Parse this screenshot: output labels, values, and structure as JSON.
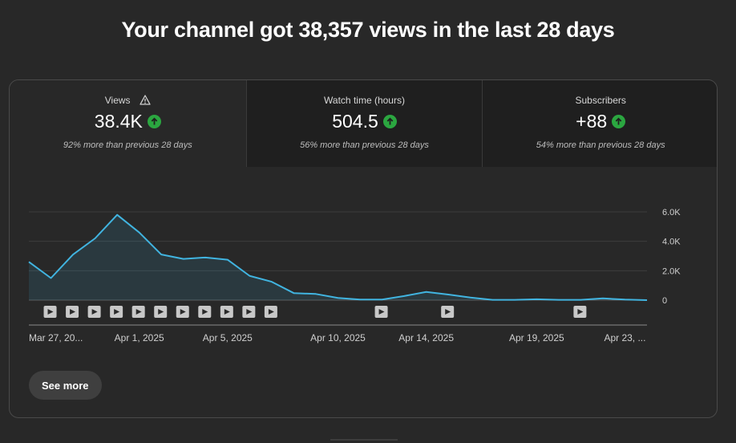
{
  "headline": "Your channel got 38,357 views in the last 28 days",
  "tabs": [
    {
      "label": "Views",
      "value": "38.4K",
      "comparison": "92% more than previous 28 days",
      "has_warning": true,
      "active": true
    },
    {
      "label": "Watch time (hours)",
      "value": "504.5",
      "comparison": "56% more than previous 28 days",
      "active": false
    },
    {
      "label": "Subscribers",
      "value": "+88",
      "comparison": "54% more than previous 28 days",
      "active": false
    }
  ],
  "chart_data": {
    "type": "area",
    "x": [
      "Mar 27",
      "Mar 28",
      "Mar 29",
      "Mar 30",
      "Mar 31",
      "Apr 1",
      "Apr 2",
      "Apr 3",
      "Apr 4",
      "Apr 5",
      "Apr 6",
      "Apr 7",
      "Apr 8",
      "Apr 9",
      "Apr 10",
      "Apr 11",
      "Apr 12",
      "Apr 13",
      "Apr 14",
      "Apr 15",
      "Apr 16",
      "Apr 17",
      "Apr 18",
      "Apr 19",
      "Apr 20",
      "Apr 21",
      "Apr 22",
      "Apr 23",
      "Apr 24"
    ],
    "values": [
      2600,
      1500,
      3100,
      4200,
      5800,
      4600,
      3100,
      2800,
      2900,
      2750,
      1650,
      1250,
      480,
      420,
      150,
      40,
      40,
      280,
      560,
      380,
      180,
      20,
      20,
      60,
      20,
      20,
      120,
      40,
      0
    ],
    "ylim": [
      0,
      6000
    ],
    "y_ticks": [
      "6.0K",
      "4.0K",
      "2.0K",
      "0"
    ],
    "y_tick_values": [
      6000,
      4000,
      2000,
      0
    ],
    "x_tick_labels": [
      {
        "label": "Mar 27, 20...",
        "index": 0
      },
      {
        "label": "Apr 1, 2025",
        "index": 5
      },
      {
        "label": "Apr 5, 2025",
        "index": 9
      },
      {
        "label": "Apr 10, 2025",
        "index": 14
      },
      {
        "label": "Apr 14, 2025",
        "index": 18
      },
      {
        "label": "Apr 19, 2025",
        "index": 23
      },
      {
        "label": "Apr 23, ...",
        "index": 27
      }
    ],
    "video_markers": [
      1,
      2,
      3,
      4,
      5,
      6,
      7,
      8,
      9,
      10,
      11,
      16,
      19,
      25
    ],
    "line_color": "#41b4e0",
    "fill_color": "#41b4e0",
    "grid": true
  },
  "see_more_label": "See more",
  "colors": {
    "background": "#282828",
    "up": "#2ba640",
    "tab_inactive": "#1f1f1f"
  }
}
